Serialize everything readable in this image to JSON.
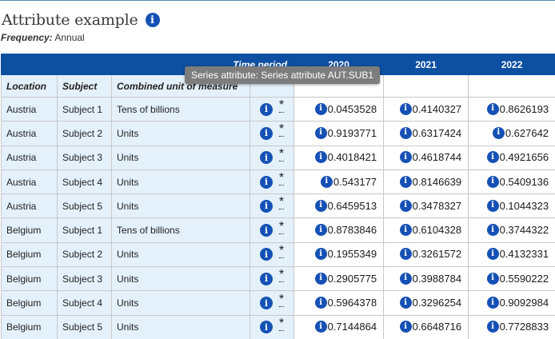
{
  "header": {
    "title": "Attribute example",
    "frequency_label": "Frequency:",
    "frequency_value": "Annual",
    "info_glyph": "i"
  },
  "table": {
    "time_period_label": "Time period",
    "years": [
      "2020",
      "2021",
      "2022"
    ],
    "columns": [
      "Location",
      "Subject",
      "Combined unit of measure"
    ],
    "observation_flag": "*",
    "rows": [
      {
        "location": "Austria",
        "subject": "Subject 1",
        "unit": "Tens of billions",
        "values": [
          "0.0453528",
          "0.4140327",
          "0.8626193"
        ]
      },
      {
        "location": "Austria",
        "subject": "Subject 2",
        "unit": "Units",
        "values": [
          "0.9193771",
          "0.6317424",
          "0.627642"
        ]
      },
      {
        "location": "Austria",
        "subject": "Subject 3",
        "unit": "Units",
        "values": [
          "0.4018421",
          "0.4618744",
          "0.4921656"
        ]
      },
      {
        "location": "Austria",
        "subject": "Subject 4",
        "unit": "Units",
        "values": [
          "0.543177",
          "0.8146639",
          "0.5409136"
        ]
      },
      {
        "location": "Austria",
        "subject": "Subject 5",
        "unit": "Units",
        "values": [
          "0.6459513",
          "0.3478327",
          "0.1044323"
        ]
      },
      {
        "location": "Belgium",
        "subject": "Subject 1",
        "unit": "Tens of billions",
        "values": [
          "0.8783846",
          "0.6104328",
          "0.3744322"
        ]
      },
      {
        "location": "Belgium",
        "subject": "Subject 2",
        "unit": "Units",
        "values": [
          "0.1955349",
          "0.3261572",
          "0.4132331"
        ]
      },
      {
        "location": "Belgium",
        "subject": "Subject 3",
        "unit": "Units",
        "values": [
          "0.2905775",
          "0.3988784",
          "0.5590222"
        ]
      },
      {
        "location": "Belgium",
        "subject": "Subject 4",
        "unit": "Units",
        "values": [
          "0.5964378",
          "0.3296254",
          "0.9092984"
        ]
      },
      {
        "location": "Belgium",
        "subject": "Subject 5",
        "unit": "Units",
        "values": [
          "0.7144864",
          "0.6648716",
          "0.7728833"
        ]
      }
    ]
  },
  "tooltip": {
    "text": "Series attribute: Series attribute AUT.SUB1"
  },
  "colors": {
    "header_blue": "#0d4fa0",
    "dimension_bg": "#e4f1fb",
    "info_icon": "#1551b5",
    "tooltip_bg": "#7d7d7d"
  }
}
